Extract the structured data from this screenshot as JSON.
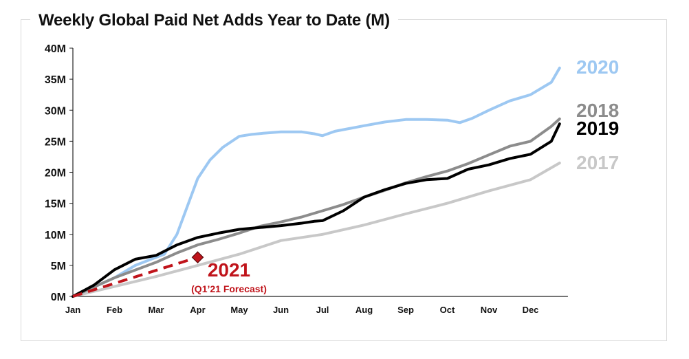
{
  "title": "Weekly Global Paid Net Adds Year to Date (M)",
  "chart_data": {
    "type": "line",
    "title": "Weekly Global Paid Net Adds Year to Date (M)",
    "xlabel": "",
    "ylabel": "",
    "ylim": [
      0,
      40
    ],
    "y_ticks": [
      "0M",
      "5M",
      "10M",
      "15M",
      "20M",
      "25M",
      "30M",
      "35M",
      "40M"
    ],
    "x_ticks": [
      "Jan",
      "Feb",
      "Mar",
      "Apr",
      "May",
      "Jun",
      "Jul",
      "Aug",
      "Sep",
      "Oct",
      "Nov",
      "Dec"
    ],
    "grid": false,
    "legend": "direct labels at right end of lines",
    "series": [
      {
        "name": "2017",
        "color": "#c8c8c8",
        "style": "solid",
        "x": [
          0,
          1,
          2,
          3,
          4,
          5,
          6,
          7,
          8,
          9,
          10,
          11,
          11.7
        ],
        "y": [
          0,
          1.6,
          3.2,
          5.0,
          6.8,
          9.0,
          10.0,
          11.5,
          13.3,
          15.0,
          17.0,
          18.8,
          21.5
        ]
      },
      {
        "name": "2018",
        "color": "#8c8c8c",
        "style": "solid",
        "x": [
          0,
          1,
          2,
          2.5,
          3,
          3.5,
          4,
          4.5,
          5,
          5.5,
          6,
          6.5,
          7,
          7.5,
          8,
          8.5,
          9,
          9.5,
          10,
          10.5,
          11,
          11.5,
          11.7
        ],
        "y": [
          0,
          3.0,
          5.5,
          7.0,
          8.3,
          9.2,
          10.2,
          11.3,
          12.0,
          12.8,
          13.8,
          14.8,
          16.0,
          17.1,
          18.3,
          19.3,
          20.2,
          21.4,
          22.8,
          24.2,
          25.0,
          27.4,
          28.6
        ]
      },
      {
        "name": "2019",
        "color": "#000000",
        "style": "solid",
        "x": [
          0,
          0.5,
          1,
          1.5,
          2,
          2.5,
          3,
          3.5,
          4,
          4.5,
          5,
          5.5,
          5.8,
          6,
          6.5,
          7,
          7.5,
          8,
          8.5,
          9,
          9.5,
          10,
          10.5,
          11,
          11.5,
          11.7
        ],
        "y": [
          0,
          1.8,
          4.3,
          6.0,
          6.6,
          8.3,
          9.5,
          10.2,
          10.8,
          11.1,
          11.4,
          11.8,
          12.1,
          12.2,
          13.8,
          16.0,
          17.2,
          18.2,
          18.8,
          19.0,
          20.5,
          21.2,
          22.2,
          22.9,
          25.0,
          27.8
        ]
      },
      {
        "name": "2020",
        "color": "#9dc8f2",
        "style": "solid",
        "x": [
          0,
          1,
          1.5,
          2,
          2.2,
          2.5,
          3,
          3.3,
          3.6,
          4,
          4.3,
          4.6,
          5,
          5.5,
          5.8,
          6,
          6.3,
          7,
          7.5,
          8,
          8.5,
          9,
          9.3,
          9.6,
          10,
          10.5,
          11,
          11.5,
          11.7
        ],
        "y": [
          0,
          3.0,
          5.0,
          6.3,
          6.8,
          10.0,
          19.0,
          22.0,
          24.0,
          25.8,
          26.1,
          26.3,
          26.5,
          26.5,
          26.2,
          25.9,
          26.6,
          27.5,
          28.1,
          28.5,
          28.5,
          28.4,
          28.0,
          28.7,
          30.0,
          31.5,
          32.5,
          34.5,
          36.8
        ]
      },
      {
        "name": "2021",
        "color": "#c0141b",
        "style": "dashed",
        "x": [
          0,
          3
        ],
        "y": [
          0,
          6.3
        ]
      }
    ],
    "annotations": [
      {
        "series": "2021",
        "text": "2021",
        "subtext": "(Q1’21 Forecast)",
        "marker": "diamond",
        "x": 3,
        "y": 6.3
      }
    ]
  }
}
